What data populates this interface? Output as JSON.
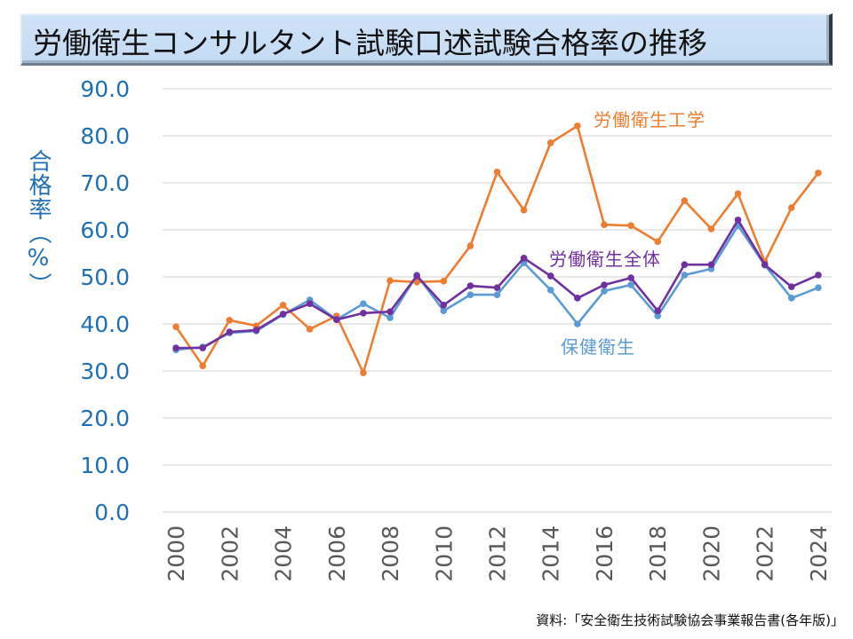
{
  "title": "労働衛生コンサルタント試験口述試験合格率の推移",
  "footnote": "資料:「安全衛生技術試験協会事業報告書(各年版)」",
  "chart_data": {
    "type": "line",
    "title": "労働衛生コンサルタント試験口述試験合格率の推移",
    "xlabel": "",
    "ylabel": "合格率（%）",
    "ylim": [
      0,
      90
    ],
    "y_ticks": [
      "0.0",
      "10.0",
      "20.0",
      "30.0",
      "40.0",
      "50.0",
      "60.0",
      "70.0",
      "80.0",
      "90.0"
    ],
    "y_tick_values": [
      0,
      10,
      20,
      30,
      40,
      50,
      60,
      70,
      80,
      90
    ],
    "x": [
      2000,
      2001,
      2002,
      2003,
      2004,
      2005,
      2006,
      2007,
      2008,
      2009,
      2010,
      2011,
      2012,
      2013,
      2014,
      2015,
      2016,
      2017,
      2018,
      2019,
      2020,
      2021,
      2022,
      2023,
      2024
    ],
    "x_tick_labels": [
      "2000",
      "2002",
      "2004",
      "2006",
      "2008",
      "2010",
      "2012",
      "2014",
      "2016",
      "2018",
      "2020",
      "2022",
      "2024"
    ],
    "grid": true,
    "legend": "inline-labels",
    "series": [
      {
        "name": "労働衛生工学",
        "color": "#ed7d31",
        "label_position": "top-right",
        "values": [
          39.4,
          31.1,
          40.8,
          39.6,
          44.0,
          38.9,
          41.7,
          29.6,
          49.2,
          48.9,
          49.1,
          56.6,
          72.3,
          64.2,
          78.5,
          82.1,
          61.1,
          60.9,
          57.5,
          66.2,
          60.2,
          67.7,
          53.2,
          64.7,
          72.1
        ]
      },
      {
        "name": "保健衛生",
        "color": "#5b9bd5",
        "label_position": "below",
        "values": [
          34.5,
          35.1,
          38.1,
          38.5,
          42.0,
          45.1,
          40.9,
          44.3,
          41.3,
          50.4,
          42.8,
          46.2,
          46.2,
          53.0,
          47.2,
          40.0,
          47.0,
          48.3,
          41.7,
          50.4,
          51.7,
          60.9,
          52.5,
          45.5,
          47.7
        ]
      },
      {
        "name": "労働衛生全体",
        "color": "#7030a0",
        "label_position": "middle",
        "values": [
          34.9,
          34.9,
          38.3,
          38.7,
          42.1,
          44.3,
          40.9,
          42.3,
          42.6,
          50.2,
          44.0,
          48.1,
          47.7,
          54.0,
          50.2,
          45.5,
          48.3,
          49.8,
          42.8,
          52.6,
          52.6,
          62.1,
          52.6,
          47.9,
          50.4
        ]
      }
    ]
  }
}
